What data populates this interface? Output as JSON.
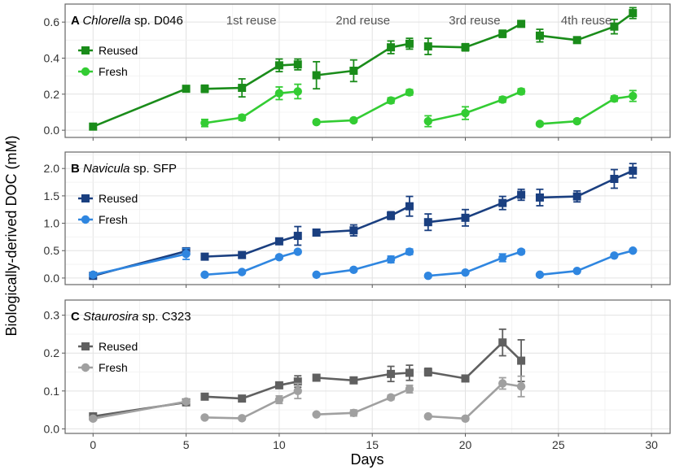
{
  "chart_data": {
    "type": "line",
    "xlabel": "Days",
    "ylabel": "Biologically-derived DOC (mM)",
    "xlim": [
      -1.5,
      31
    ],
    "xticks": [
      0,
      5,
      10,
      15,
      20,
      25,
      30
    ],
    "reuse_labels": [
      {
        "text": "1st reuse",
        "x": 8.5
      },
      {
        "text": "2nd reuse",
        "x": 14.5
      },
      {
        "text": "3rd reuse",
        "x": 20.5
      },
      {
        "text": "4th reuse",
        "x": 26.5
      }
    ],
    "panels": [
      {
        "letter": "A",
        "species_italic": "Chlorella",
        "species_rest": " sp. D046",
        "ylim": [
          -0.04,
          0.7
        ],
        "yticks": [
          "0.0",
          "0.2",
          "0.4",
          "0.6"
        ],
        "series": [
          {
            "name": "Reused",
            "color": "#1a8c1a",
            "marker": "square",
            "segments": [
              [
                [
                  0,
                  0.02,
                  0.01
                ],
                [
                  5,
                  0.23,
                  0.01
                ]
              ],
              [
                [
                  6,
                  0.23,
                  0.02
                ],
                [
                  8,
                  0.235,
                  0.05
                ],
                [
                  10,
                  0.36,
                  0.035
                ],
                [
                  11,
                  0.365,
                  0.03
                ]
              ],
              [
                [
                  12,
                  0.305,
                  0.075
                ],
                [
                  14,
                  0.33,
                  0.06
                ],
                [
                  16,
                  0.46,
                  0.035
                ],
                [
                  17,
                  0.48,
                  0.03
                ]
              ],
              [
                [
                  18,
                  0.465,
                  0.045
                ],
                [
                  20,
                  0.46,
                  0.02
                ],
                [
                  22,
                  0.535,
                  0.02
                ],
                [
                  23,
                  0.59,
                  0.015
                ]
              ],
              [
                [
                  24,
                  0.525,
                  0.035
                ],
                [
                  26,
                  0.5,
                  0.015
                ],
                [
                  28,
                  0.575,
                  0.04
                ],
                [
                  29,
                  0.65,
                  0.03
                ]
              ]
            ]
          },
          {
            "name": "Fresh",
            "color": "#33cc33",
            "marker": "circle",
            "segments": [
              [
                [
                  6,
                  0.04,
                  0.02
                ],
                [
                  8,
                  0.07,
                  0.015
                ],
                [
                  10,
                  0.205,
                  0.035
                ],
                [
                  11,
                  0.215,
                  0.04
                ]
              ],
              [
                [
                  12,
                  0.045,
                  0.01
                ],
                [
                  14,
                  0.055,
                  0.01
                ],
                [
                  16,
                  0.165,
                  0.015
                ],
                [
                  17,
                  0.21,
                  0.015
                ]
              ],
              [
                [
                  18,
                  0.05,
                  0.03
                ],
                [
                  20,
                  0.095,
                  0.035
                ],
                [
                  22,
                  0.17,
                  0.015
                ],
                [
                  23,
                  0.215,
                  0.015
                ]
              ],
              [
                [
                  24,
                  0.035,
                  0.01
                ],
                [
                  26,
                  0.05,
                  0.01
                ],
                [
                  28,
                  0.175,
                  0.015
                ],
                [
                  29,
                  0.19,
                  0.03
                ]
              ]
            ]
          }
        ]
      },
      {
        "letter": "B",
        "species_italic": "Navicula",
        "species_rest": " sp. SFP",
        "ylim": [
          -0.12,
          2.3
        ],
        "yticks": [
          "0.0",
          "0.5",
          "1.0",
          "1.5",
          "2.0"
        ],
        "series": [
          {
            "name": "Reused",
            "color": "#1a3f80",
            "marker": "square",
            "segments": [
              [
                [
                  0,
                  0.04,
                  0.03
                ],
                [
                  5,
                  0.49,
                  0.05
                ]
              ],
              [
                [
                  6,
                  0.39,
                  0.05
                ],
                [
                  8,
                  0.42,
                  0.05
                ],
                [
                  10,
                  0.67,
                  0.05
                ],
                [
                  11,
                  0.77,
                  0.17
                ]
              ],
              [
                [
                  12,
                  0.83,
                  0.05
                ],
                [
                  14,
                  0.87,
                  0.1
                ],
                [
                  16,
                  1.14,
                  0.07
                ],
                [
                  17,
                  1.31,
                  0.18
                ]
              ],
              [
                [
                  18,
                  1.02,
                  0.15
                ],
                [
                  20,
                  1.1,
                  0.15
                ],
                [
                  22,
                  1.37,
                  0.12
                ],
                [
                  23,
                  1.52,
                  0.1
                ]
              ],
              [
                [
                  24,
                  1.47,
                  0.15
                ],
                [
                  26,
                  1.49,
                  0.1
                ],
                [
                  28,
                  1.81,
                  0.17
                ],
                [
                  29,
                  1.96,
                  0.13
                ]
              ]
            ]
          },
          {
            "name": "Fresh",
            "color": "#2f86e0",
            "marker": "circle",
            "segments": [
              [
                [
                  0,
                  0.06,
                  0.03
                ],
                [
                  5,
                  0.44,
                  0.1
                ]
              ],
              [
                [
                  6,
                  0.06,
                  0.02
                ],
                [
                  8,
                  0.11,
                  0.02
                ],
                [
                  10,
                  0.38,
                  0.03
                ],
                [
                  11,
                  0.48,
                  0.03
                ]
              ],
              [
                [
                  12,
                  0.06,
                  0.02
                ],
                [
                  14,
                  0.15,
                  0.02
                ],
                [
                  16,
                  0.34,
                  0.06
                ],
                [
                  17,
                  0.48,
                  0.05
                ]
              ],
              [
                [
                  18,
                  0.04,
                  0.02
                ],
                [
                  20,
                  0.1,
                  0.02
                ],
                [
                  22,
                  0.37,
                  0.07
                ],
                [
                  23,
                  0.48,
                  0.04
                ]
              ],
              [
                [
                  24,
                  0.06,
                  0.02
                ],
                [
                  26,
                  0.13,
                  0.02
                ],
                [
                  28,
                  0.41,
                  0.02
                ],
                [
                  29,
                  0.5,
                  0.02
                ]
              ]
            ]
          }
        ]
      },
      {
        "letter": "C",
        "species_italic": "Staurosira",
        "species_rest": " sp. C323",
        "ylim": [
          -0.012,
          0.34
        ],
        "yticks": [
          "0.0",
          "0.1",
          "0.2",
          "0.3"
        ],
        "series": [
          {
            "name": "Reused",
            "color": "#606060",
            "marker": "square",
            "segments": [
              [
                [
                  0,
                  0.033,
                  0.003
                ],
                [
                  5,
                  0.07,
                  0.008
                ]
              ],
              [
                [
                  6,
                  0.085,
                  0.005
                ],
                [
                  8,
                  0.08,
                  0.005
                ],
                [
                  10,
                  0.115,
                  0.007
                ],
                [
                  11,
                  0.125,
                  0.015
                ]
              ],
              [
                [
                  12,
                  0.135,
                  0.005
                ],
                [
                  14,
                  0.128,
                  0.006
                ],
                [
                  16,
                  0.145,
                  0.02
                ],
                [
                  17,
                  0.148,
                  0.02
                ]
              ],
              [
                [
                  18,
                  0.15,
                  0.01
                ],
                [
                  20,
                  0.133,
                  0.005
                ],
                [
                  22,
                  0.228,
                  0.035
                ],
                [
                  23,
                  0.18,
                  0.055
                ]
              ]
            ]
          },
          {
            "name": "Fresh",
            "color": "#a0a0a0",
            "marker": "circle",
            "segments": [
              [
                [
                  0,
                  0.027,
                  0.003
                ],
                [
                  5,
                  0.072,
                  0.005
                ]
              ],
              [
                [
                  6,
                  0.03,
                  0.004
                ],
                [
                  8,
                  0.028,
                  0.003
                ],
                [
                  10,
                  0.077,
                  0.01
                ],
                [
                  11,
                  0.1,
                  0.02
                ]
              ],
              [
                [
                  12,
                  0.038,
                  0.003
                ],
                [
                  14,
                  0.042,
                  0.008
                ],
                [
                  16,
                  0.083,
                  0.006
                ],
                [
                  17,
                  0.105,
                  0.01
                ]
              ],
              [
                [
                  18,
                  0.033,
                  0.003
                ],
                [
                  20,
                  0.027,
                  0.003
                ],
                [
                  22,
                  0.12,
                  0.015
                ],
                [
                  23,
                  0.112,
                  0.027
                ]
              ]
            ]
          }
        ]
      }
    ]
  }
}
